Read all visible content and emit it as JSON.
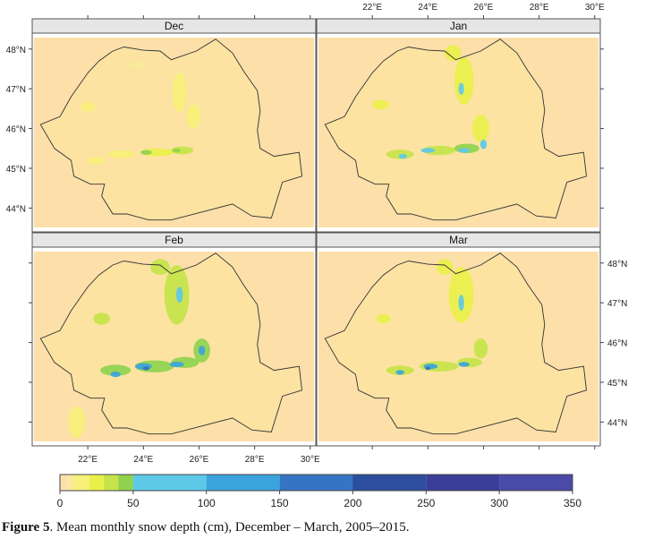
{
  "caption": {
    "label": "Figure 5",
    "text": ". Mean monthly snow depth (cm), December – March, 2005–2015."
  },
  "colors": {
    "background_fill": "#fddfaa",
    "romania_outline": "#333333",
    "strip_fill": "#e6e6e6"
  },
  "chart_data": {
    "type": "heatmap",
    "title": "",
    "panels": [
      "Dec",
      "Jan",
      "Feb",
      "Mar"
    ],
    "x_ticks": [
      "22°E",
      "24°E",
      "26°E",
      "28°E",
      "30°E"
    ],
    "x_tick_values": [
      22,
      24,
      26,
      28,
      30
    ],
    "y_ticks": [
      "44°N",
      "45°N",
      "46°N",
      "47°N",
      "48°N"
    ],
    "y_tick_values": [
      44,
      45,
      46,
      47,
      48
    ],
    "xlim": [
      20,
      30.2
    ],
    "ylim": [
      43.4,
      48.4
    ],
    "colorbar": {
      "ticks": [
        "0",
        "50",
        "100",
        "150",
        "200",
        "250",
        "300",
        "350"
      ],
      "tick_values": [
        0,
        50,
        100,
        150,
        200,
        250,
        300,
        350
      ],
      "breaks": [
        0,
        5,
        10,
        20,
        30,
        40,
        50,
        100,
        150,
        200,
        250,
        300,
        350
      ],
      "colors": [
        "#fddfaa",
        "#fbe99a",
        "#f7f07a",
        "#eaf04a",
        "#c6e44a",
        "#8fd24e",
        "#5ec8e8",
        "#3ba4dc",
        "#3474c4",
        "#2d4e9c",
        "#3a3e96",
        "#4a4aa8"
      ]
    }
  }
}
